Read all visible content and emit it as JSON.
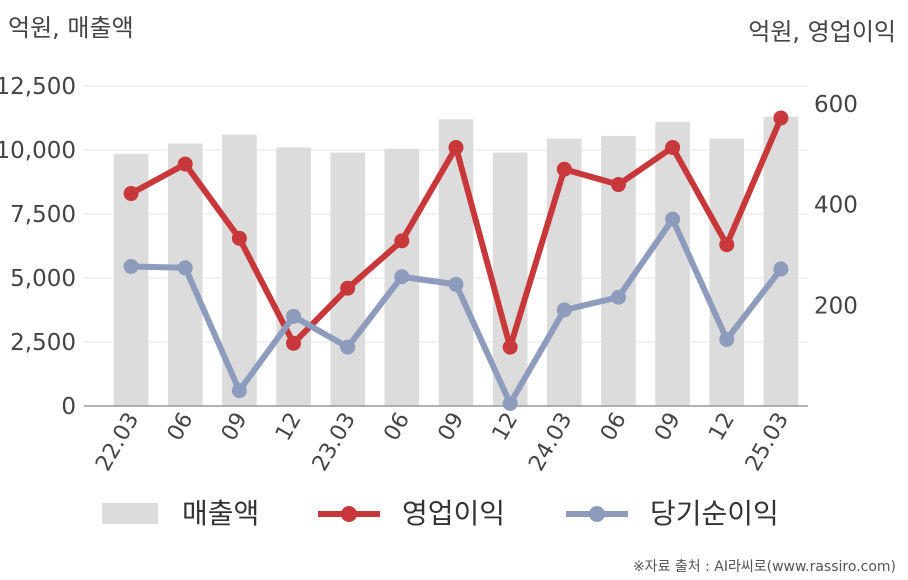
{
  "chart_data": {
    "type": "bar",
    "left_unit": "억원, 매출액",
    "right_unit": "억원, 영업이익",
    "categories": [
      "22.03",
      "06",
      "09",
      "12",
      "23.03",
      "06",
      "09",
      "12",
      "24.03",
      "06",
      "09",
      "12",
      "25.03"
    ],
    "left_axis": {
      "ylim": [
        0,
        12500
      ],
      "ticks": [
        "0",
        "2,500",
        "5,000",
        "7,500",
        "10,000",
        "12,500"
      ]
    },
    "right_axis": {
      "ylim": [
        0,
        600
      ],
      "ticks": [
        "200",
        "400",
        "600"
      ]
    },
    "series": [
      {
        "name": "매출액",
        "type": "bar",
        "axis": "left",
        "color": "#dcdcdc",
        "values": [
          9850,
          10250,
          10600,
          10100,
          9900,
          10050,
          11200,
          9900,
          10450,
          10550,
          11100,
          10450,
          11300
        ]
      },
      {
        "name": "영업이익",
        "type": "line",
        "axis": "left",
        "color": "#c8383a",
        "values": [
          8300,
          9450,
          6550,
          2450,
          4600,
          6450,
          10100,
          2300,
          9250,
          8650,
          10100,
          6300,
          11250
        ]
      },
      {
        "name": "당기순이익",
        "type": "line",
        "axis": "left",
        "color": "#8d9bbc",
        "values": [
          5450,
          5400,
          600,
          3500,
          2300,
          5050,
          4750,
          100,
          3750,
          4250,
          7300,
          2600,
          5350
        ]
      }
    ],
    "grid": true,
    "legend": "bottom"
  },
  "footer": {
    "source": "※자료 출처 : AI라씨로(www.rassiro.com)"
  }
}
